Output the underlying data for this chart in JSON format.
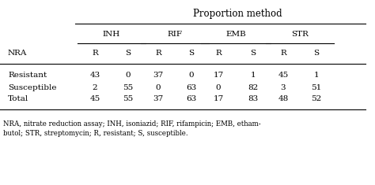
{
  "title": "Proportion method",
  "drug_headers": [
    "INH",
    "RIF",
    "EMB",
    "STR"
  ],
  "col_headers": [
    "R",
    "S",
    "R",
    "S",
    "R",
    "S",
    "R",
    "S"
  ],
  "row_labels": [
    "NRA",
    "Resistant",
    "Susceptible",
    "Total"
  ],
  "rows": {
    "Resistant": [
      43,
      0,
      37,
      0,
      17,
      1,
      45,
      1
    ],
    "Susceptible": [
      2,
      55,
      0,
      63,
      0,
      82,
      3,
      51
    ],
    "Total": [
      45,
      55,
      37,
      63,
      17,
      83,
      48,
      52
    ]
  },
  "footnote_line1": "NRA, nitrate reduction assay; INH, isoniazid; RIF, rifampicin; EMB, etham-",
  "footnote_line2": "butol; STR, streptomycin; R, resistant; S, susceptible.",
  "row_names": [
    "Resistant",
    "Susceptible",
    "Total"
  ]
}
